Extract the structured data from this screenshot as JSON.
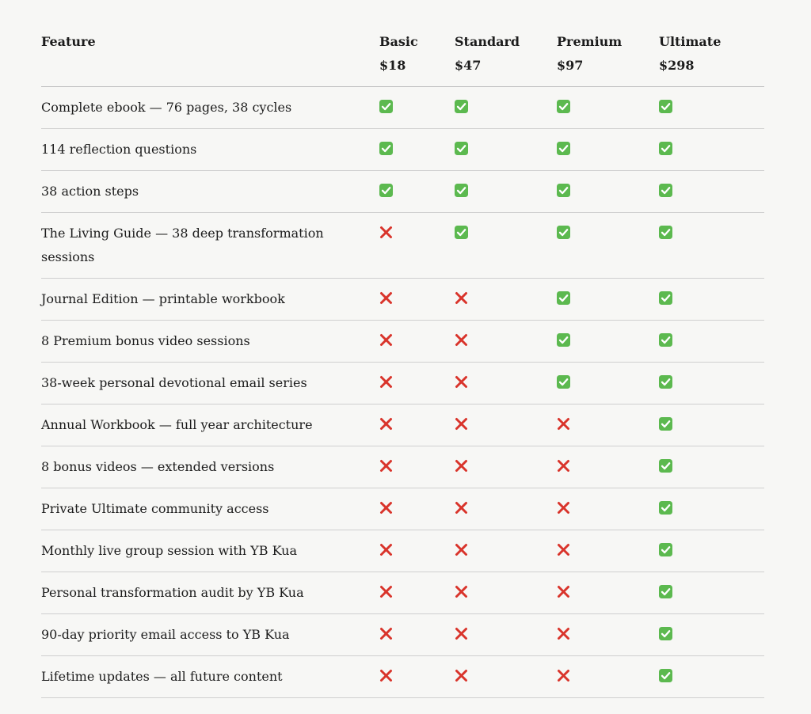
{
  "header": {
    "feature_label": "Feature",
    "plans": [
      {
        "name": "Basic",
        "price": "$18"
      },
      {
        "name": "Standard",
        "price": "$47"
      },
      {
        "name": "Premium",
        "price": "$97"
      },
      {
        "name": "Ultimate",
        "price": "$298"
      }
    ]
  },
  "icons": {
    "included": "check-mark-button-icon",
    "excluded": "cross-mark-icon"
  },
  "colors": {
    "check_bg": "#5cb94f",
    "cross": "#d9342b"
  },
  "rows": [
    {
      "feature": "Complete ebook — 76 pages, 38 cycles",
      "included": [
        true,
        true,
        true,
        true
      ]
    },
    {
      "feature": "114 reflection questions",
      "included": [
        true,
        true,
        true,
        true
      ]
    },
    {
      "feature": "38 action steps",
      "included": [
        true,
        true,
        true,
        true
      ]
    },
    {
      "feature": "The Living Guide — 38 deep transformation sessions",
      "included": [
        false,
        true,
        true,
        true
      ]
    },
    {
      "feature": "Journal Edition — printable workbook",
      "included": [
        false,
        false,
        true,
        true
      ]
    },
    {
      "feature": "8 Premium bonus video sessions",
      "included": [
        false,
        false,
        true,
        true
      ]
    },
    {
      "feature": "38-week personal devotional email series",
      "included": [
        false,
        false,
        true,
        true
      ]
    },
    {
      "feature": "Annual Workbook — full year architecture",
      "included": [
        false,
        false,
        false,
        true
      ]
    },
    {
      "feature": "8 bonus videos — extended versions",
      "included": [
        false,
        false,
        false,
        true
      ]
    },
    {
      "feature": "Private Ultimate community access",
      "included": [
        false,
        false,
        false,
        true
      ]
    },
    {
      "feature": "Monthly live group session with YB Kua",
      "included": [
        false,
        false,
        false,
        true
      ]
    },
    {
      "feature": "Personal transformation audit by YB Kua",
      "included": [
        false,
        false,
        false,
        true
      ]
    },
    {
      "feature": "90-day priority email access to YB Kua",
      "included": [
        false,
        false,
        false,
        true
      ]
    },
    {
      "feature": "Lifetime updates — all future content",
      "included": [
        false,
        false,
        false,
        true
      ]
    }
  ]
}
